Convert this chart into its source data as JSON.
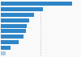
{
  "values": [
    670,
    400,
    315,
    270,
    245,
    235,
    215,
    170,
    90,
    48
  ],
  "bar_color": "#2e86c8",
  "last_bar_color": "#a8cce8",
  "background_color": "#f9f9f9",
  "figsize": [
    1.0,
    0.71
  ],
  "dpi": 100,
  "grid_color": "#cccccc",
  "xmax": 750
}
